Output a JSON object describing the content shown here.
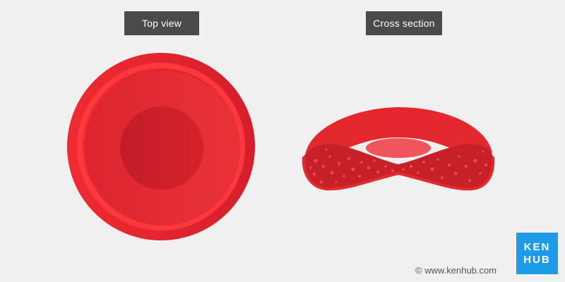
{
  "labels": {
    "top_view": "Top view",
    "cross_section": "Cross section"
  },
  "footer": {
    "copyright": "© www.kenhub.com",
    "logo_line1": "KEN",
    "logo_line2": "HUB"
  },
  "colors": {
    "background": "#f0f0f0",
    "label_bg": "#4a4a4a",
    "cell_rim": "#e0242c",
    "cell_center": "#c91f2a",
    "logo_bg": "#1e9be8"
  }
}
